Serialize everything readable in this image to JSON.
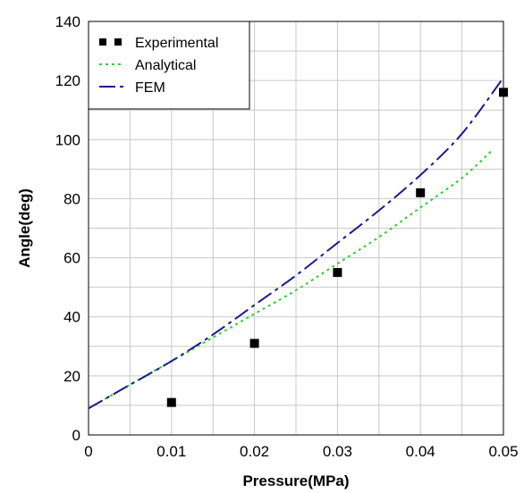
{
  "chart_data": {
    "type": "line",
    "xlabel": "Pressure(MPa)",
    "ylabel": "Angle(deg)",
    "xlim": [
      0,
      0.05
    ],
    "ylim": [
      0,
      140
    ],
    "x_ticks": [
      "0",
      "0.01",
      "0.02",
      "0.03",
      "0.04",
      "0.05"
    ],
    "y_ticks": [
      "0",
      "20",
      "40",
      "60",
      "80",
      "100",
      "120",
      "140"
    ],
    "grid": true,
    "legend_position": "top-left",
    "series": [
      {
        "name": "Experimental",
        "style": "markers",
        "color": "#000000",
        "x": [
          0.01,
          0.02,
          0.03,
          0.04,
          0.05
        ],
        "y": [
          11,
          31,
          55,
          82,
          116
        ]
      },
      {
        "name": "Analytical",
        "style": "dotted",
        "color": "#33cc33",
        "x": [
          0,
          0.005,
          0.01,
          0.015,
          0.02,
          0.025,
          0.03,
          0.035,
          0.04,
          0.045,
          0.0485
        ],
        "y": [
          9,
          17,
          25,
          33,
          41,
          49,
          58,
          67,
          77,
          87,
          96
        ]
      },
      {
        "name": "FEM",
        "style": "dashdot",
        "color": "#1a1a8c",
        "x": [
          0,
          0.005,
          0.01,
          0.015,
          0.02,
          0.025,
          0.03,
          0.035,
          0.04,
          0.045,
          0.05
        ],
        "y": [
          9,
          17,
          25,
          34,
          44,
          54,
          65,
          76,
          88,
          102,
          121
        ]
      }
    ]
  }
}
